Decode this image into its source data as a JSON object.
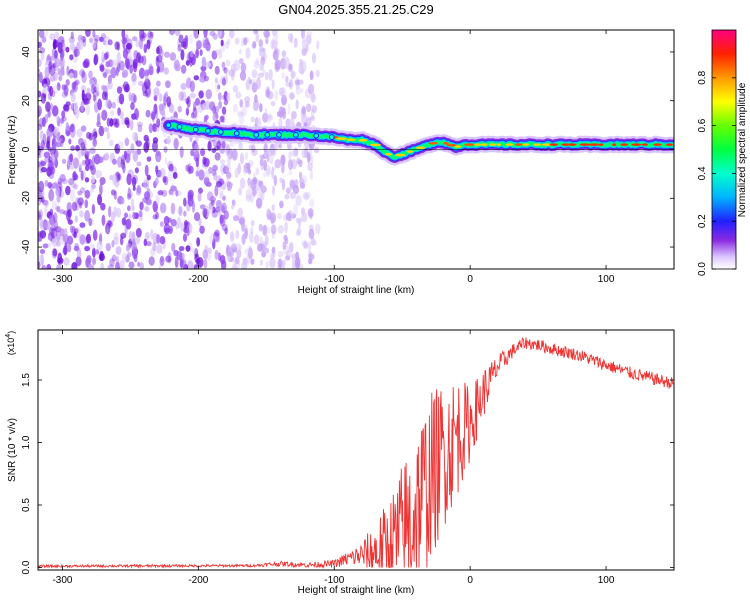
{
  "title": "GN04.2025.355.21.25.C29",
  "chart_data": [
    {
      "type": "heatmap",
      "title": "GN04.2025.355.21.25.C29",
      "xlabel": "Height of straight line (km)",
      "ylabel": "Frequency (Hz)",
      "xlim": [
        -318,
        150
      ],
      "ylim": [
        -49,
        49
      ],
      "x_ticks": [
        -300,
        -200,
        -100,
        0,
        100
      ],
      "x_tick_labels": [
        "-300",
        "-200",
        "-100",
        "0",
        "100"
      ],
      "y_ticks": [
        -40,
        -20,
        0,
        20,
        40
      ],
      "y_tick_labels": [
        "-40",
        "-20",
        "0",
        "20",
        "40"
      ],
      "colorbar": {
        "label": "Normalized spectral amplitude",
        "range": [
          0,
          1
        ],
        "ticks": [
          0,
          0.2,
          0.4,
          0.6,
          0.8
        ],
        "tick_labels": [
          "0.0",
          "0.2",
          "0.4",
          "0.6",
          "0.8"
        ]
      },
      "ridge": {
        "x": [
          -222,
          -200,
          -180,
          -160,
          -140,
          -120,
          -100,
          -90,
          -80,
          -75,
          -70,
          -65,
          -60,
          -55,
          -50,
          -45,
          -40,
          -35,
          -30,
          -25,
          -20,
          -15,
          -10,
          -5,
          0,
          20,
          50,
          100,
          150
        ],
        "freq": [
          10,
          8,
          7,
          6,
          6,
          6,
          5,
          4,
          4,
          3,
          2,
          0,
          -2,
          -3,
          -2,
          -1,
          0,
          1,
          2,
          3,
          3,
          2,
          1,
          2,
          2,
          2,
          2,
          2,
          2
        ]
      },
      "noise_region_x": [
        -318,
        -120
      ]
    },
    {
      "type": "line",
      "xlabel": "Height of straight line (km)",
      "ylabel": "SNR (10 * v/v)",
      "y_multiplier": "(x10",
      "y_multiplier_exp": "4",
      "multiplier_close": ")",
      "xlim": [
        -318,
        150
      ],
      "ylim": [
        -0.02,
        1.9
      ],
      "x_ticks": [
        -300,
        -200,
        -100,
        0,
        100
      ],
      "x_tick_labels": [
        "-300",
        "-200",
        "-100",
        "0",
        "100"
      ],
      "y_ticks": [
        0,
        0.5,
        1.0,
        1.5
      ],
      "y_tick_labels": [
        "0.0",
        "0.5",
        "1.0",
        "1.5"
      ],
      "color": "#ee3333",
      "envelope": {
        "x": [
          -318,
          -160,
          -140,
          -120,
          -100,
          -90,
          -80,
          -70,
          -60,
          -50,
          -40,
          -30,
          -20,
          -10,
          0,
          10,
          20,
          30,
          40,
          50,
          60,
          80,
          100,
          120,
          150
        ],
        "mean": [
          0.01,
          0.015,
          0.03,
          0.02,
          0.03,
          0.07,
          0.1,
          0.12,
          0.15,
          0.25,
          0.45,
          0.7,
          0.9,
          1.05,
          1.15,
          1.4,
          1.6,
          1.72,
          1.8,
          1.78,
          1.75,
          1.7,
          1.62,
          1.55,
          1.47
        ],
        "amp": [
          0.01,
          0.01,
          0.02,
          0.02,
          0.03,
          0.06,
          0.1,
          0.25,
          0.4,
          0.6,
          0.7,
          0.7,
          0.6,
          0.5,
          0.3,
          0.2,
          0.1,
          0.06,
          0.05,
          0.05,
          0.05,
          0.05,
          0.05,
          0.05,
          0.05
        ]
      }
    }
  ]
}
